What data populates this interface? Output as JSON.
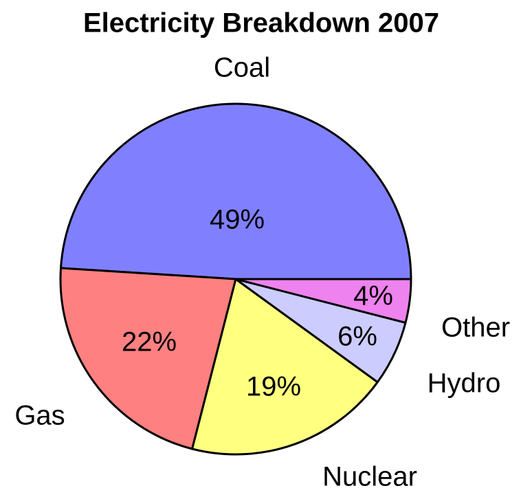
{
  "chart_data": {
    "type": "pie",
    "title": "Electricity Breakdown 2007",
    "categories": [
      "Coal",
      "Gas",
      "Nuclear",
      "Hydro",
      "Other"
    ],
    "values": [
      49,
      22,
      19,
      6,
      4
    ],
    "value_labels": [
      "49%",
      "22%",
      "19%",
      "6%",
      "4%"
    ],
    "colors": [
      "#8080ff",
      "#ff8080",
      "#ffff80",
      "#ccccff",
      "#ee82ee"
    ]
  }
}
